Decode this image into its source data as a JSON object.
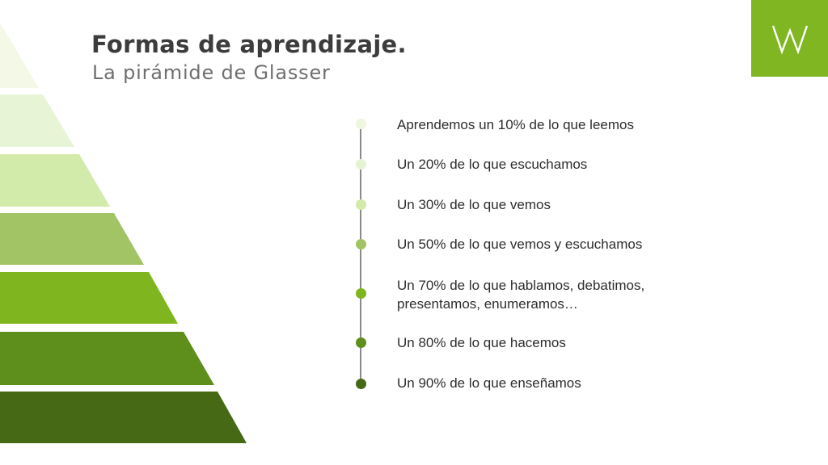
{
  "slide": {
    "title": "Formas de aprendizaje.",
    "subtitle": "La pirámide de Glasser",
    "logo_letter": "W",
    "accent_color": "#7fb622"
  },
  "pyramid_levels": [
    {
      "color": "#f3f9e6"
    },
    {
      "color": "#e8f4d6"
    },
    {
      "color": "#d2eaaa"
    },
    {
      "color": "#a2c465"
    },
    {
      "color": "#7fb51e"
    },
    {
      "color": "#5e8e1c"
    },
    {
      "color": "#456914"
    }
  ],
  "items": [
    {
      "text": "Aprendemos un 10% de lo que leemos",
      "color": "#eef6de"
    },
    {
      "text": "Un 20% de lo que escuchamos",
      "color": "#e6f3d2"
    },
    {
      "text": "Un 30% de lo que vemos",
      "color": "#d2eaaa"
    },
    {
      "text": "Un 50% de lo que vemos y escuchamos",
      "color": "#a2c465"
    },
    {
      "text": "Un 70% de lo que hablamos, debatimos,\npresentamos, enumeramos…",
      "color": "#7fb51e"
    },
    {
      "text": "Un 80% de lo que hacemos",
      "color": "#5e8e1c"
    },
    {
      "text": "Un 90% de lo que enseñamos",
      "color": "#456914"
    }
  ]
}
